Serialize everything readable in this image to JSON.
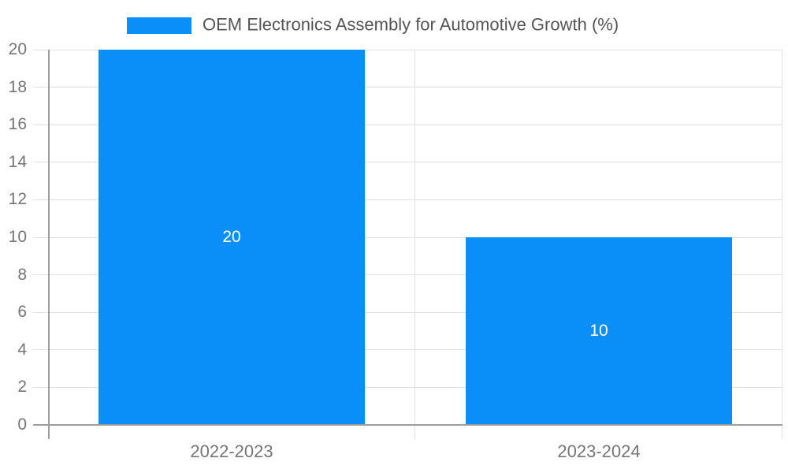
{
  "legend": {
    "label": "OEM Electronics Assembly for Automotive Growth (%)"
  },
  "colors": {
    "bar": "#0a8ff9",
    "grid_line": "#e0e0e0",
    "axis_line": "#9e9e9e",
    "tick_label": "#757575",
    "x_label": "#757575",
    "value_label": "#ffffff",
    "legend_label": "#555555",
    "background": "#ffffff"
  },
  "chart_data": {
    "type": "bar",
    "categories": [
      "2022-2023",
      "2023-2024"
    ],
    "series": [
      {
        "name": "OEM Electronics Assembly for Automotive Growth (%)",
        "values": [
          20,
          10
        ]
      }
    ],
    "bar_value_labels": [
      "20",
      "10"
    ],
    "ylim": [
      0,
      20
    ],
    "ytick_step": 2,
    "ytick_labels": [
      "0",
      "2",
      "4",
      "6",
      "8",
      "10",
      "12",
      "14",
      "16",
      "18",
      "20"
    ],
    "grid": true,
    "grid_orientation": "horizontal-with-category-boundaries",
    "legend_position": "top",
    "bar_width_fraction": 0.725
  }
}
